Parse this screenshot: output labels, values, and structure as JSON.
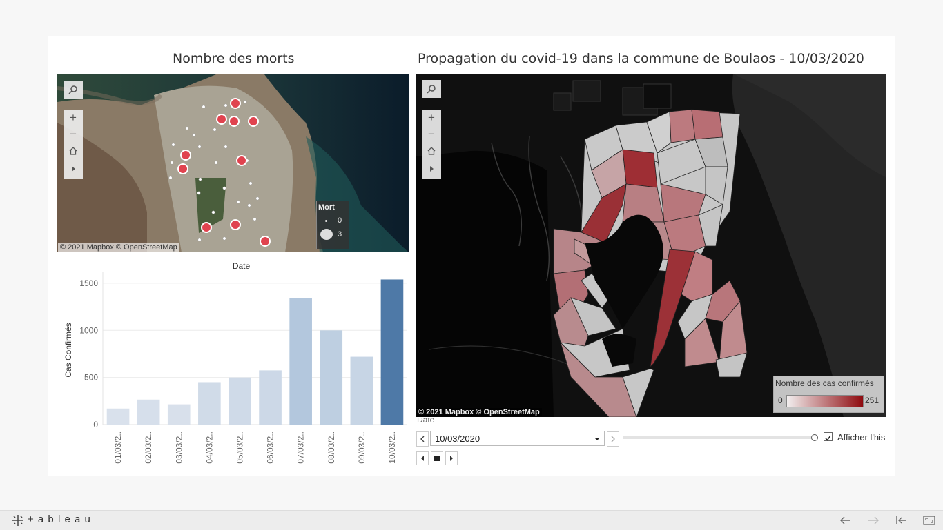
{
  "left_map": {
    "title": "Nombre des morts",
    "attribution": "© 2021 Mapbox  © OpenStreetMap",
    "legend": {
      "title": "Mort",
      "min": "0",
      "max": "3"
    }
  },
  "right_map": {
    "title": "Propagation du covid-19 dans la commune de Boulaos - 10/03/2020",
    "attribution": "© 2021 Mapbox  © OpenStreetMap",
    "legend": {
      "title": "Nombre des cas confirmés",
      "min": "0",
      "max": "251"
    }
  },
  "chart_data": {
    "type": "bar",
    "title": "Date",
    "ylabel": "Cas Confirmés",
    "xlabel": "",
    "categories": [
      "01/03/2..",
      "02/03/2..",
      "03/03/2..",
      "04/03/2..",
      "05/03/2..",
      "06/03/2..",
      "07/03/2..",
      "08/03/2..",
      "09/03/2..",
      "10/03/2.."
    ],
    "values": [
      170,
      265,
      215,
      450,
      500,
      575,
      1345,
      1000,
      720,
      1540
    ],
    "highlight_index": 9,
    "ylim": [
      0,
      1580
    ],
    "yticks": [
      0,
      500,
      1000,
      1500
    ],
    "colors": {
      "normal_low": "#dfe5ee",
      "normal_high": "#b3c7dd",
      "highlight": "#4e79a7"
    }
  },
  "date_control": {
    "label": "Date",
    "value": "10/03/2020",
    "checkbox_label": "Afficher l'his",
    "checkbox_checked": true
  },
  "footer": {
    "brand": "+ a b l e a u"
  }
}
